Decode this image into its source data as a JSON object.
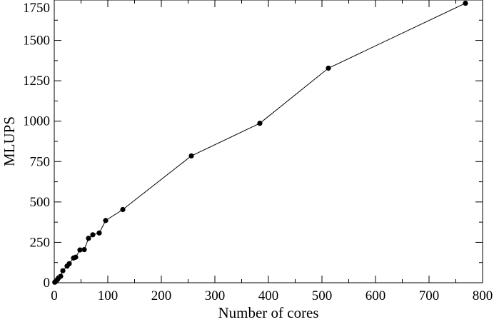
{
  "chart_data": {
    "type": "scatter",
    "title": "",
    "xlabel": "Number of cores",
    "ylabel": "MLUPS",
    "xlim": [
      0,
      800
    ],
    "ylim": [
      0,
      1750
    ],
    "xticks": [
      0,
      100,
      200,
      300,
      400,
      500,
      600,
      700,
      800
    ],
    "yticks": [
      0,
      250,
      500,
      750,
      1000,
      1250,
      1500,
      1750
    ],
    "grid": false,
    "connected": true,
    "colors": {
      "line": "#000000",
      "marker": "#000000"
    },
    "series": [
      {
        "points": [
          {
            "x": 1,
            "y": 3
          },
          {
            "x": 2,
            "y": 6
          },
          {
            "x": 4,
            "y": 13
          },
          {
            "x": 6,
            "y": 20
          },
          {
            "x": 8,
            "y": 30
          },
          {
            "x": 12,
            "y": 40
          },
          {
            "x": 16,
            "y": 74
          },
          {
            "x": 24,
            "y": 103
          },
          {
            "x": 28,
            "y": 118
          },
          {
            "x": 36,
            "y": 153
          },
          {
            "x": 40,
            "y": 158
          },
          {
            "x": 48,
            "y": 203
          },
          {
            "x": 56,
            "y": 205
          },
          {
            "x": 64,
            "y": 275
          },
          {
            "x": 72,
            "y": 297
          },
          {
            "x": 84,
            "y": 308
          },
          {
            "x": 96,
            "y": 385
          },
          {
            "x": 128,
            "y": 453
          },
          {
            "x": 256,
            "y": 785
          },
          {
            "x": 384,
            "y": 987
          },
          {
            "x": 512,
            "y": 1328
          },
          {
            "x": 768,
            "y": 1730
          }
        ]
      }
    ]
  }
}
